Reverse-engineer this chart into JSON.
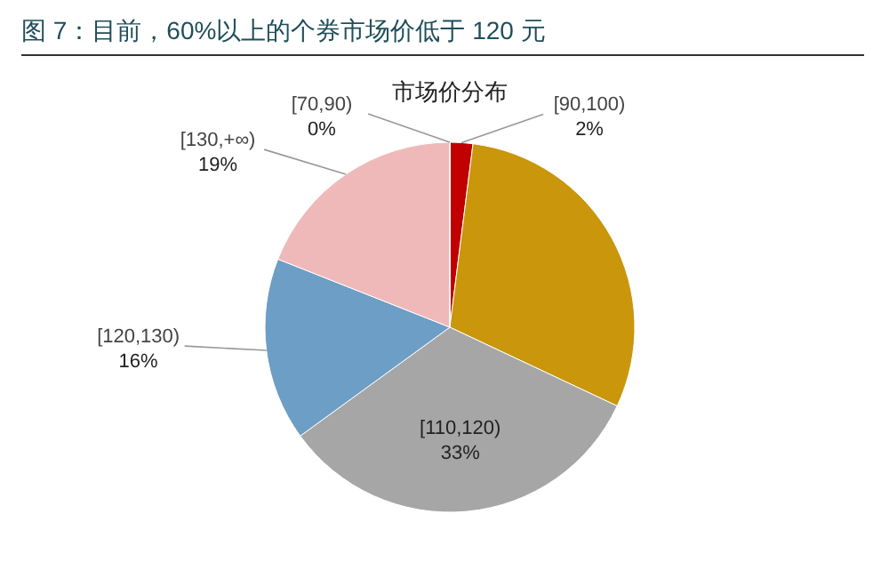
{
  "chart_data": {
    "type": "pie",
    "title": "图 7：目前，60%以上的个券市场价低于 120 元",
    "subtitle": "市场价分布",
    "categories": [
      "[90,100)",
      null,
      "[110,120)",
      "[120,130)",
      "[130,+∞)",
      "[70,90)"
    ],
    "values": [
      2,
      30,
      33,
      16,
      19,
      0
    ],
    "value_labels": [
      "2%",
      null,
      "33%",
      "16%",
      "19%",
      "0%"
    ],
    "colors": [
      "#c00000",
      "#c9960c",
      "#a6a6a6",
      "#6c9ec6",
      "#f0b9b9",
      "#7f7f7f"
    ]
  }
}
